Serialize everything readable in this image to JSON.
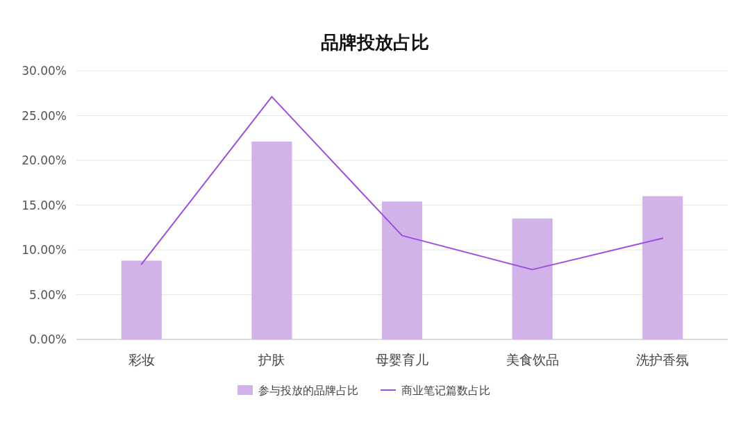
{
  "chart_data": {
    "type": "bar",
    "title": "品牌投放占比",
    "categories": [
      "彩妆",
      "护肤",
      "母婴育儿",
      "美食饮品",
      "洗护香氛"
    ],
    "series": [
      {
        "name": "参与投放的品牌占比",
        "color": "#d1b3e9",
        "values": [
          8.8,
          22.1,
          15.4,
          13.5,
          16.0
        ]
      },
      {
        "name": "商业笔记篇数占比",
        "type": "line",
        "color": "#9b4de0",
        "values": [
          8.4,
          27.1,
          11.6,
          7.8,
          11.3
        ]
      }
    ],
    "ylim": [
      0,
      30
    ],
    "yticks": [
      {
        "value": 0,
        "label": "0.00%"
      },
      {
        "value": 5,
        "label": "5.00%"
      },
      {
        "value": 10,
        "label": "10.00%"
      },
      {
        "value": 15,
        "label": "15.00%"
      },
      {
        "value": 20,
        "label": "20.00%"
      },
      {
        "value": 25,
        "label": "25.00%"
      },
      {
        "value": 30,
        "label": "30.00%"
      }
    ],
    "grid": "y",
    "legend": "bottom",
    "marker": "none",
    "line_style": "solid"
  }
}
